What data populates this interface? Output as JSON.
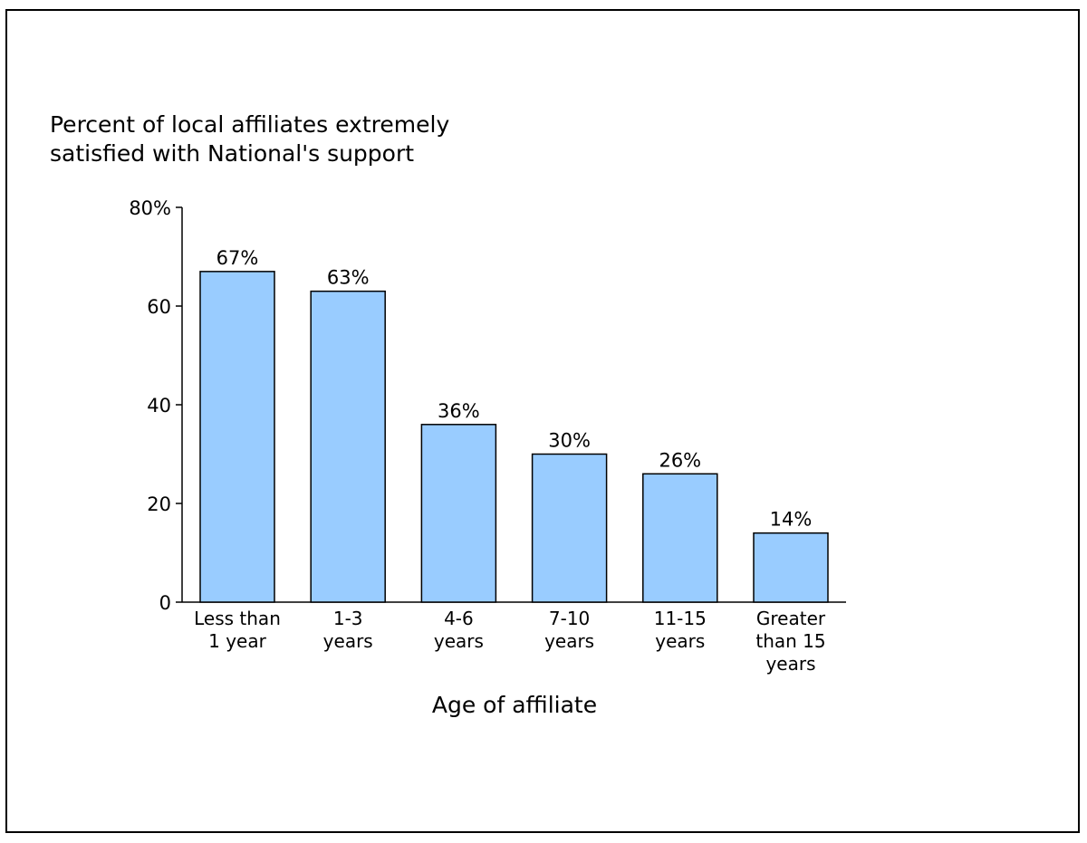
{
  "chart_data": {
    "type": "bar",
    "title": "Percent of local affiliates extremely\nsatisfied with National's support",
    "xlabel": "Age of affiliate",
    "ylabel": "",
    "categories": [
      [
        "Less than",
        "1 year"
      ],
      [
        "1-3",
        "years"
      ],
      [
        "4-6",
        "years"
      ],
      [
        "7-10",
        "years"
      ],
      [
        "11-15",
        "years"
      ],
      [
        "Greater",
        "than 15",
        "years"
      ]
    ],
    "values": [
      67,
      63,
      36,
      30,
      26,
      14
    ],
    "data_labels": [
      "67%",
      "63%",
      "36%",
      "30%",
      "26%",
      "14%"
    ],
    "ylim": [
      0,
      80
    ],
    "yticks": [
      0,
      20,
      40,
      60,
      80
    ],
    "ytick_labels": [
      "0",
      "20",
      "40",
      "60",
      "80%"
    ],
    "grid": false,
    "colors": {
      "bar_fill": "#99ccff",
      "bar_stroke": "#000000"
    }
  }
}
